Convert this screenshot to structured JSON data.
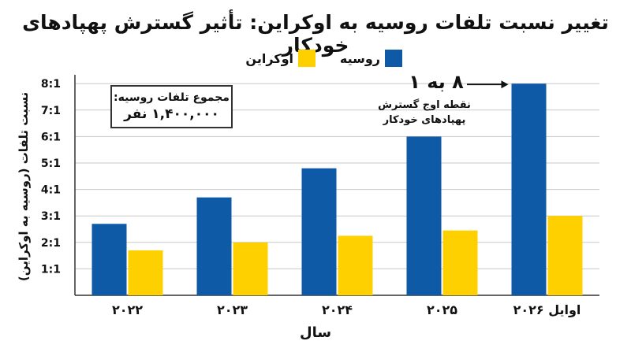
{
  "chart_data": {
    "type": "bar",
    "title": "تغییر نسبت تلفات روسیه به اوکراین: تأثیر گسترش پهپادهای خودکار",
    "xlabel": "سال",
    "ylabel": "نسبت تلفات (روسیه به اوکراین)",
    "categories": [
      "۲۰۲۲",
      "۲۰۲۳",
      "۲۰۲۴",
      "۲۰۲۵",
      "اوایل ۲۰۲۶"
    ],
    "ytick_labels": [
      "1:1",
      "2:1",
      "3:1",
      "4:1",
      "5:1",
      "6:1",
      "7:1",
      "8:1"
    ],
    "ylim": [
      0,
      8
    ],
    "grid": true,
    "legend_position": "top",
    "series": [
      {
        "name": "روسیه",
        "color": "#0F5AA6",
        "values": [
          2.7,
          3.7,
          4.8,
          6.0,
          8.0
        ]
      },
      {
        "name": "اوکراین",
        "color": "#FFD000",
        "values": [
          1.7,
          2.0,
          2.25,
          2.45,
          3.0
        ]
      }
    ],
    "annotations": {
      "total_losses_line1": "مجموع تلفات روسیه:",
      "total_losses_line2": "۱,۴۰۰,۰۰۰ نفر",
      "peak_value": "۸ به ۱",
      "peak_note_line1": "نقطه اوج گسترش",
      "peak_note_line2": "پهپادهای خودکار"
    }
  }
}
